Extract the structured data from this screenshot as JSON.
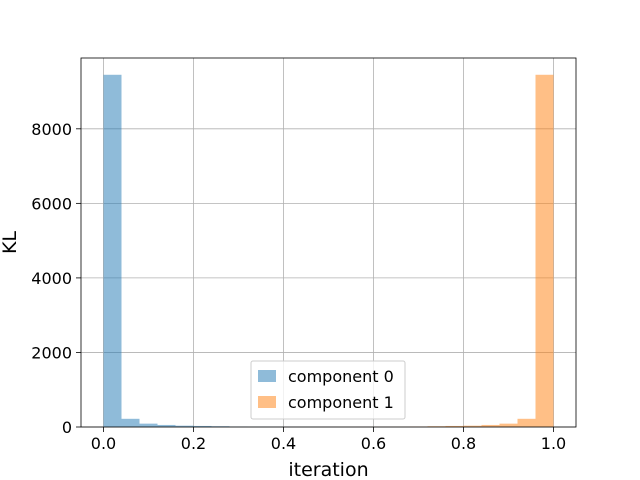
{
  "chart_data": {
    "type": "bar",
    "title": "",
    "xlabel": "iteration",
    "ylabel": "KL",
    "xlim": [
      -0.05,
      1.05
    ],
    "ylim": [
      0,
      9900
    ],
    "xticks": [
      0.0,
      0.2,
      0.4,
      0.6,
      0.8,
      1.0
    ],
    "xtick_labels": [
      "0.0",
      "0.2",
      "0.4",
      "0.6",
      "0.8",
      "1.0"
    ],
    "yticks": [
      0,
      2000,
      4000,
      6000,
      8000
    ],
    "ytick_labels": [
      "0",
      "2000",
      "4000",
      "6000",
      "8000"
    ],
    "grid": true,
    "legend": "lower-center",
    "bin_edges": [
      0.0,
      0.04,
      0.08,
      0.12,
      0.16,
      0.2,
      0.24,
      0.28,
      0.32,
      0.36,
      0.4,
      0.44,
      0.48,
      0.52,
      0.56,
      0.6,
      0.64,
      0.68,
      0.72,
      0.76,
      0.8,
      0.84,
      0.88,
      0.92,
      0.96,
      1.0
    ],
    "series": [
      {
        "name": "component 0",
        "color": "#1f77b4",
        "values": [
          9450,
          220,
          90,
          55,
          35,
          28,
          20,
          10,
          5,
          3,
          2,
          1,
          1,
          0,
          0,
          0,
          0,
          0,
          0,
          0,
          0,
          0,
          0,
          0,
          0
        ]
      },
      {
        "name": "component 1",
        "color": "#ff7f0e",
        "values": [
          0,
          0,
          0,
          0,
          0,
          0,
          0,
          0,
          0,
          0,
          0,
          0,
          1,
          1,
          2,
          3,
          5,
          10,
          20,
          28,
          35,
          55,
          90,
          220,
          9450
        ]
      }
    ]
  }
}
